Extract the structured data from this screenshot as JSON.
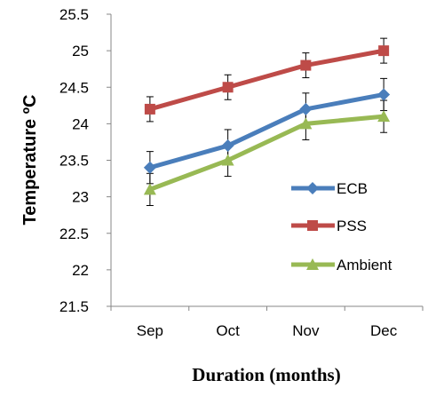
{
  "chart_data": {
    "type": "line",
    "categories": [
      "Sep",
      "Oct",
      "Nov",
      "Dec"
    ],
    "xlabel": "Duration (months)",
    "ylabel": "Temperature ºC",
    "ylim": [
      21.5,
      25.5
    ],
    "y_ticks": [
      "21.5",
      "22",
      "22.5",
      "23",
      "23.5",
      "24",
      "24.5",
      "25",
      "25.5"
    ],
    "grid": false,
    "legend_position": "right",
    "series": [
      {
        "name": "ECB",
        "color": "#4A7EBB",
        "marker": "diamond",
        "values": [
          23.4,
          23.7,
          24.2,
          24.4
        ],
        "error": [
          0.22,
          0.22,
          0.22,
          0.22
        ]
      },
      {
        "name": "PSS",
        "color": "#BE4B48",
        "marker": "square",
        "values": [
          24.2,
          24.5,
          24.8,
          25.0
        ],
        "error": [
          0.17,
          0.17,
          0.17,
          0.17
        ]
      },
      {
        "name": "Ambient",
        "color": "#98B954",
        "marker": "triangle",
        "values": [
          23.1,
          23.5,
          24.0,
          24.1
        ],
        "error": [
          0.22,
          0.22,
          0.22,
          0.22
        ]
      }
    ]
  }
}
